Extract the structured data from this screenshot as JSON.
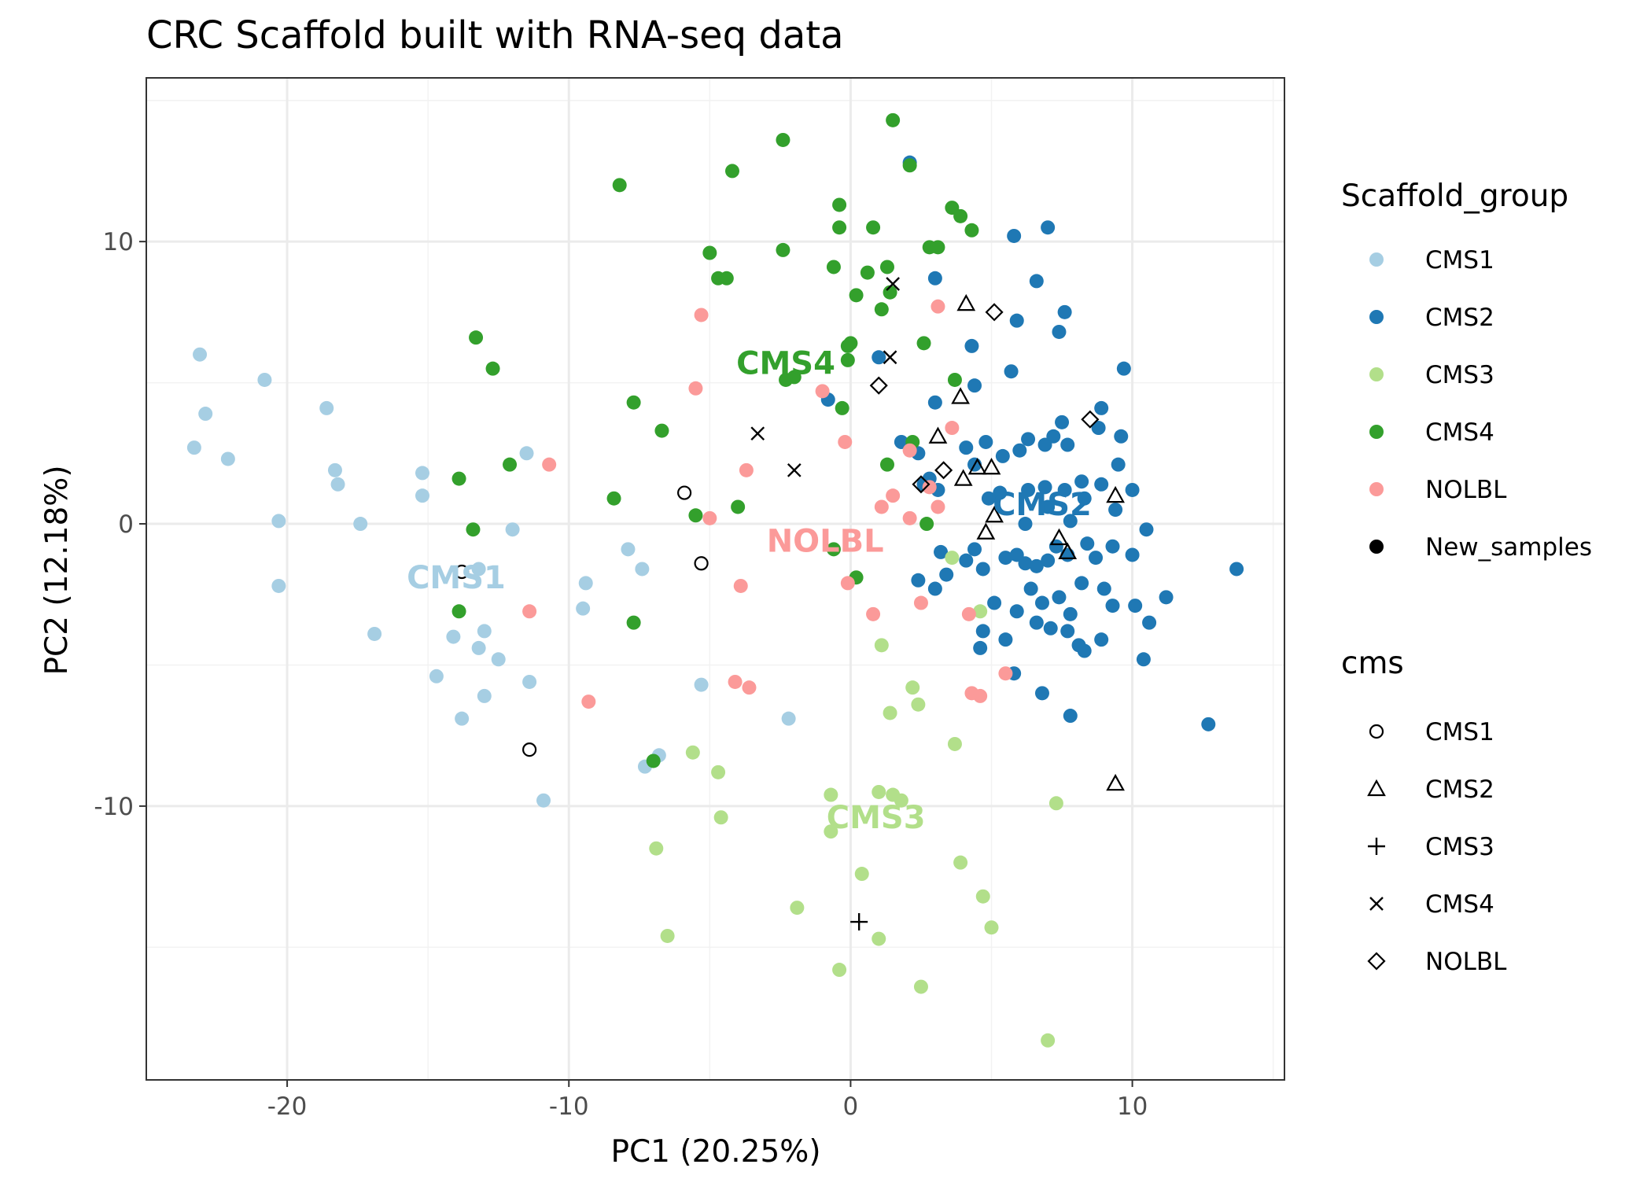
{
  "chart_data": {
    "type": "scatter",
    "title": "CRC Scaffold built with RNA-seq data",
    "xlabel": "PC1 (20.25%)",
    "ylabel": "PC2 (12.18%)",
    "xlim": [
      -25,
      15.4
    ],
    "ylim": [
      -19.7,
      15.8
    ],
    "x_ticks": [
      -20,
      -10,
      0,
      10
    ],
    "y_ticks": [
      -10,
      0,
      10
    ],
    "x_tick_labels": [
      "-20",
      "-10",
      "0",
      "10"
    ],
    "y_tick_labels": [
      "-10",
      "0",
      "10"
    ],
    "grid": true,
    "legend_position": "right",
    "colors": {
      "CMS1": "#a6cee3",
      "CMS2": "#1f78b4",
      "CMS3": "#b2df8a",
      "CMS4": "#33a02c",
      "NOLBL": "#fb9a99",
      "New_samples": "#000000"
    },
    "legend_fill": {
      "title": "Scaffold_group",
      "items": [
        "CMS1",
        "CMS2",
        "CMS3",
        "CMS4",
        "NOLBL",
        "New_samples"
      ]
    },
    "legend_shape": {
      "title": "cms",
      "items": [
        {
          "label": "CMS1",
          "shape": "circle-open"
        },
        {
          "label": "CMS2",
          "shape": "triangle-open"
        },
        {
          "label": "CMS3",
          "shape": "plus"
        },
        {
          "label": "CMS4",
          "shape": "cross"
        },
        {
          "label": "NOLBL",
          "shape": "diamond-open"
        }
      ]
    },
    "group_labels": [
      {
        "text": "CMS1",
        "group": "CMS1",
        "x": -14.0,
        "y": -1.9
      },
      {
        "text": "CMS2",
        "group": "CMS2",
        "x": 6.8,
        "y": 0.7
      },
      {
        "text": "CMS3",
        "group": "CMS3",
        "x": 0.9,
        "y": -10.4
      },
      {
        "text": "CMS4",
        "group": "CMS4",
        "x": -2.3,
        "y": 5.7
      },
      {
        "text": "NOLBL",
        "group": "NOLBL",
        "x": -0.9,
        "y": -0.6
      }
    ],
    "series": [
      {
        "name": "CMS1",
        "points": [
          [
            -23.1,
            6.0
          ],
          [
            -23.3,
            2.7
          ],
          [
            -22.9,
            3.9
          ],
          [
            -22.1,
            2.3
          ],
          [
            -20.8,
            5.1
          ],
          [
            -20.3,
            0.1
          ],
          [
            -20.3,
            -2.2
          ],
          [
            -18.6,
            4.1
          ],
          [
            -18.3,
            1.9
          ],
          [
            -18.2,
            1.4
          ],
          [
            -17.4,
            0.0
          ],
          [
            -16.9,
            -3.9
          ],
          [
            -15.2,
            1.8
          ],
          [
            -15.2,
            1.0
          ],
          [
            -14.7,
            -5.4
          ],
          [
            -14.1,
            -4.0
          ],
          [
            -13.8,
            -6.9
          ],
          [
            -13.2,
            -1.6
          ],
          [
            -13.2,
            -4.4
          ],
          [
            -13.0,
            -3.8
          ],
          [
            -13.0,
            -6.1
          ],
          [
            -12.5,
            -4.8
          ],
          [
            -12.0,
            -0.2
          ],
          [
            -11.5,
            2.5
          ],
          [
            -11.4,
            -5.6
          ],
          [
            -10.9,
            -9.8
          ],
          [
            -9.4,
            -2.1
          ],
          [
            -9.5,
            -3.0
          ],
          [
            -7.9,
            -0.9
          ],
          [
            -7.4,
            -1.6
          ],
          [
            -7.3,
            -8.6
          ],
          [
            -6.8,
            -8.2
          ],
          [
            -5.3,
            -5.7
          ],
          [
            -2.2,
            -6.9
          ]
        ]
      },
      {
        "name": "CMS2",
        "points": [
          [
            2.1,
            12.8
          ],
          [
            5.8,
            10.2
          ],
          [
            7.0,
            10.5
          ],
          [
            6.6,
            8.6
          ],
          [
            3.0,
            8.7
          ],
          [
            5.9,
            7.2
          ],
          [
            7.6,
            7.5
          ],
          [
            7.4,
            6.8
          ],
          [
            5.7,
            5.4
          ],
          [
            4.3,
            6.3
          ],
          [
            4.4,
            4.9
          ],
          [
            -0.8,
            4.4
          ],
          [
            1.0,
            5.9
          ],
          [
            9.7,
            5.5
          ],
          [
            3.0,
            4.3
          ],
          [
            8.9,
            4.1
          ],
          [
            1.8,
            2.9
          ],
          [
            2.4,
            2.5
          ],
          [
            2.8,
            1.6
          ],
          [
            4.1,
            2.7
          ],
          [
            4.4,
            2.1
          ],
          [
            4.8,
            2.9
          ],
          [
            5.4,
            2.4
          ],
          [
            5.3,
            1.1
          ],
          [
            4.9,
            0.9
          ],
          [
            6.0,
            2.6
          ],
          [
            6.3,
            3.0
          ],
          [
            6.9,
            2.8
          ],
          [
            7.2,
            3.1
          ],
          [
            7.5,
            3.6
          ],
          [
            7.7,
            2.8
          ],
          [
            8.8,
            3.4
          ],
          [
            9.5,
            2.1
          ],
          [
            9.6,
            3.1
          ],
          [
            6.3,
            1.2
          ],
          [
            6.9,
            1.3
          ],
          [
            7.6,
            1.2
          ],
          [
            8.2,
            1.5
          ],
          [
            8.9,
            1.4
          ],
          [
            10.0,
            1.2
          ],
          [
            6.2,
            0.0
          ],
          [
            7.0,
            0.6
          ],
          [
            7.8,
            0.1
          ],
          [
            8.3,
            0.9
          ],
          [
            9.4,
            0.5
          ],
          [
            10.5,
            -0.2
          ],
          [
            2.6,
            1.4
          ],
          [
            3.1,
            1.2
          ],
          [
            3.2,
            -1.0
          ],
          [
            3.4,
            -1.8
          ],
          [
            4.1,
            -1.3
          ],
          [
            4.4,
            -0.9
          ],
          [
            4.7,
            -1.6
          ],
          [
            5.5,
            -1.2
          ],
          [
            5.9,
            -1.1
          ],
          [
            6.2,
            -1.4
          ],
          [
            6.6,
            -1.5
          ],
          [
            7.0,
            -1.3
          ],
          [
            7.3,
            -0.8
          ],
          [
            7.7,
            -1.1
          ],
          [
            8.4,
            -0.7
          ],
          [
            8.7,
            -1.2
          ],
          [
            9.3,
            -0.8
          ],
          [
            10.0,
            -1.1
          ],
          [
            2.4,
            -2.0
          ],
          [
            3.0,
            -2.3
          ],
          [
            5.1,
            -2.8
          ],
          [
            5.9,
            -3.1
          ],
          [
            6.4,
            -2.3
          ],
          [
            6.8,
            -2.8
          ],
          [
            7.4,
            -2.6
          ],
          [
            7.8,
            -3.2
          ],
          [
            8.2,
            -2.1
          ],
          [
            9.0,
            -2.3
          ],
          [
            9.3,
            -2.9
          ],
          [
            10.1,
            -2.9
          ],
          [
            11.2,
            -2.6
          ],
          [
            10.6,
            -3.5
          ],
          [
            13.7,
            -1.6
          ],
          [
            4.7,
            -3.8
          ],
          [
            5.5,
            -4.1
          ],
          [
            6.6,
            -3.5
          ],
          [
            7.1,
            -3.7
          ],
          [
            7.7,
            -3.8
          ],
          [
            8.1,
            -4.3
          ],
          [
            8.3,
            -4.5
          ],
          [
            8.9,
            -4.1
          ],
          [
            4.6,
            -4.4
          ],
          [
            5.8,
            -5.3
          ],
          [
            6.8,
            -6.0
          ],
          [
            7.8,
            -6.8
          ],
          [
            10.4,
            -4.8
          ],
          [
            12.7,
            -7.1
          ]
        ]
      },
      {
        "name": "CMS3",
        "points": [
          [
            3.6,
            -1.2
          ],
          [
            4.6,
            -3.1
          ],
          [
            1.1,
            -4.3
          ],
          [
            2.2,
            -5.8
          ],
          [
            2.4,
            -6.4
          ],
          [
            1.4,
            -6.7
          ],
          [
            3.7,
            -7.8
          ],
          [
            -5.6,
            -8.1
          ],
          [
            -4.7,
            -8.8
          ],
          [
            -0.7,
            -9.6
          ],
          [
            1.0,
            -9.5
          ],
          [
            1.5,
            -9.6
          ],
          [
            1.8,
            -9.8
          ],
          [
            7.3,
            -9.9
          ],
          [
            -4.6,
            -10.4
          ],
          [
            -0.7,
            -10.9
          ],
          [
            -6.9,
            -11.5
          ],
          [
            3.9,
            -12.0
          ],
          [
            0.4,
            -12.4
          ],
          [
            -1.9,
            -13.6
          ],
          [
            4.7,
            -13.2
          ],
          [
            5.0,
            -14.3
          ],
          [
            -6.5,
            -14.6
          ],
          [
            1.0,
            -14.7
          ],
          [
            -0.4,
            -15.8
          ],
          [
            2.5,
            -16.4
          ],
          [
            7.0,
            -18.3
          ]
        ]
      },
      {
        "name": "CMS4",
        "points": [
          [
            1.5,
            14.3
          ],
          [
            -2.4,
            13.6
          ],
          [
            2.1,
            12.7
          ],
          [
            -4.2,
            12.5
          ],
          [
            -8.2,
            12.0
          ],
          [
            -0.4,
            11.3
          ],
          [
            3.6,
            11.2
          ],
          [
            3.9,
            10.9
          ],
          [
            4.3,
            10.4
          ],
          [
            -0.4,
            10.5
          ],
          [
            0.8,
            10.5
          ],
          [
            -5.0,
            9.6
          ],
          [
            -2.4,
            9.7
          ],
          [
            2.8,
            9.8
          ],
          [
            3.1,
            9.8
          ],
          [
            -0.6,
            9.1
          ],
          [
            0.6,
            8.9
          ],
          [
            1.3,
            9.1
          ],
          [
            -4.7,
            8.7
          ],
          [
            -4.4,
            8.7
          ],
          [
            0.2,
            8.1
          ],
          [
            1.4,
            8.2
          ],
          [
            1.1,
            7.6
          ],
          [
            -13.3,
            6.6
          ],
          [
            -12.7,
            5.5
          ],
          [
            2.6,
            6.4
          ],
          [
            -0.1,
            6.3
          ],
          [
            0.0,
            6.4
          ],
          [
            -0.1,
            5.8
          ],
          [
            -2.0,
            5.2
          ],
          [
            -2.3,
            5.1
          ],
          [
            3.7,
            5.1
          ],
          [
            -0.3,
            4.1
          ],
          [
            -7.7,
            4.3
          ],
          [
            -6.7,
            3.3
          ],
          [
            2.2,
            2.9
          ],
          [
            1.3,
            2.1
          ],
          [
            -12.1,
            2.1
          ],
          [
            -13.9,
            1.6
          ],
          [
            -8.4,
            0.9
          ],
          [
            -4.0,
            0.6
          ],
          [
            -5.5,
            0.3
          ],
          [
            -13.4,
            -0.2
          ],
          [
            2.7,
            0.0
          ],
          [
            -0.6,
            -0.9
          ],
          [
            0.2,
            -1.9
          ],
          [
            -13.9,
            -3.1
          ],
          [
            -7.7,
            -3.5
          ],
          [
            -7.0,
            -8.4
          ]
        ]
      },
      {
        "name": "NOLBL",
        "points": [
          [
            -5.3,
            7.4
          ],
          [
            3.1,
            7.7
          ],
          [
            -5.5,
            4.8
          ],
          [
            -1.0,
            4.7
          ],
          [
            3.6,
            3.4
          ],
          [
            -0.2,
            2.9
          ],
          [
            2.1,
            2.6
          ],
          [
            -3.7,
            1.9
          ],
          [
            -10.7,
            2.1
          ],
          [
            2.8,
            1.3
          ],
          [
            1.5,
            1.0
          ],
          [
            1.1,
            0.6
          ],
          [
            3.1,
            0.6
          ],
          [
            -5.0,
            0.2
          ],
          [
            2.1,
            0.2
          ],
          [
            -3.9,
            -2.2
          ],
          [
            -0.1,
            -2.1
          ],
          [
            2.5,
            -2.8
          ],
          [
            -11.4,
            -3.1
          ],
          [
            0.8,
            -3.2
          ],
          [
            4.2,
            -3.2
          ],
          [
            -9.3,
            -6.3
          ],
          [
            -4.1,
            -5.6
          ],
          [
            -3.6,
            -5.8
          ],
          [
            4.3,
            -6.0
          ],
          [
            4.6,
            -6.1
          ],
          [
            5.5,
            -5.3
          ]
        ]
      },
      {
        "name": "New_samples",
        "points": [
          [
            -5.9,
            1.1
          ],
          [
            -13.8,
            -1.7
          ],
          [
            -5.3,
            -1.4
          ],
          [
            -11.4,
            -8.0
          ],
          [
            4.1,
            7.8
          ],
          [
            3.1,
            3.1
          ],
          [
            3.9,
            4.5
          ],
          [
            4.5,
            2.0
          ],
          [
            5.0,
            2.0
          ],
          [
            4.0,
            1.6
          ],
          [
            5.1,
            0.3
          ],
          [
            4.8,
            -0.3
          ],
          [
            7.4,
            -0.5
          ],
          [
            7.7,
            -1.0
          ],
          [
            9.4,
            1.0
          ],
          [
            9.4,
            -9.2
          ],
          [
            0.3,
            -14.1
          ],
          [
            1.5,
            8.5
          ],
          [
            1.4,
            5.9
          ],
          [
            -3.3,
            3.2
          ],
          [
            -2.0,
            1.9
          ],
          [
            5.1,
            7.5
          ],
          [
            1.0,
            4.9
          ],
          [
            3.3,
            1.9
          ],
          [
            2.5,
            1.4
          ],
          [
            8.5,
            3.7
          ]
        ],
        "shapes": [
          "circle-open",
          "circle-open",
          "circle-open",
          "circle-open",
          "triangle-open",
          "triangle-open",
          "triangle-open",
          "triangle-open",
          "triangle-open",
          "triangle-open",
          "triangle-open",
          "triangle-open",
          "triangle-open",
          "triangle-open",
          "triangle-open",
          "triangle-open",
          "plus",
          "cross",
          "cross",
          "cross",
          "cross",
          "diamond-open",
          "diamond-open",
          "diamond-open",
          "diamond-open",
          "diamond-open"
        ]
      }
    ]
  }
}
